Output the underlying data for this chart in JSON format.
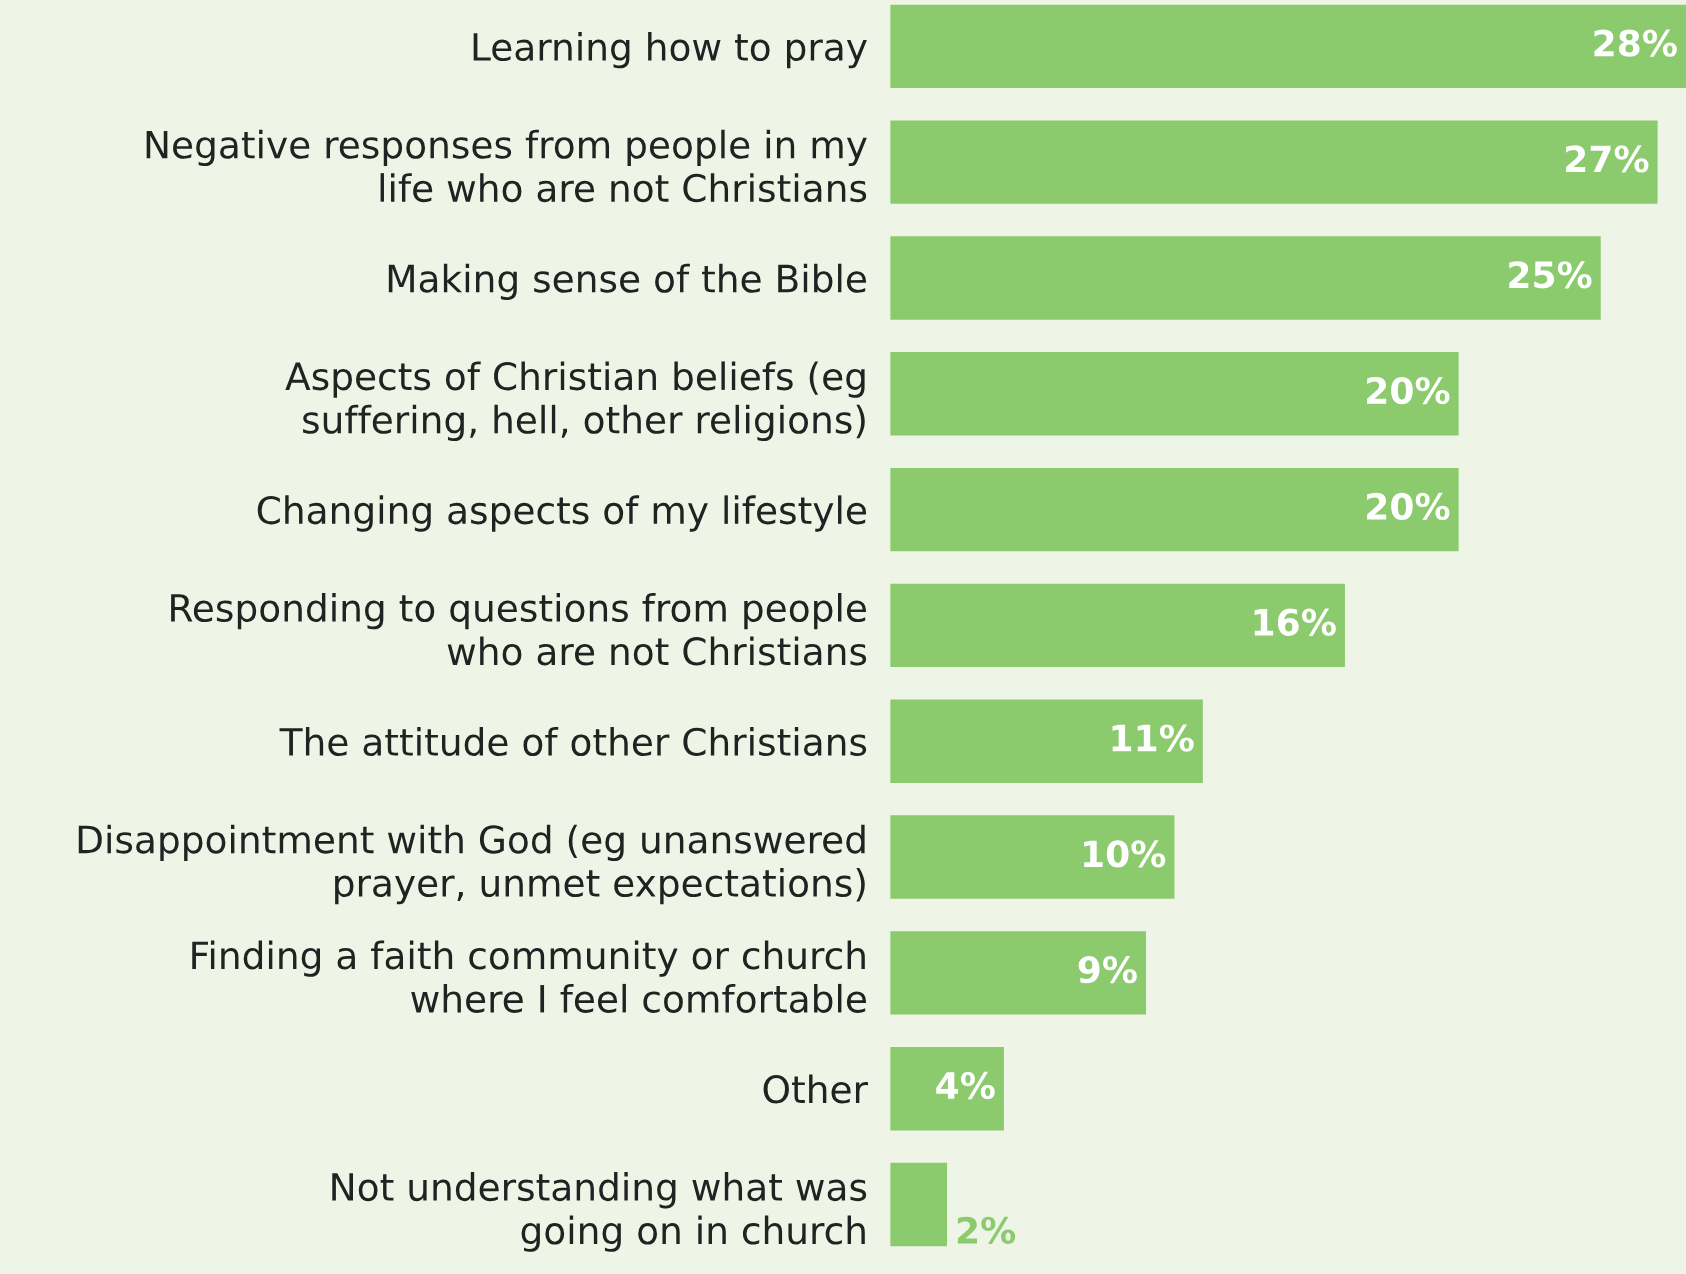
{
  "chart_data": {
    "type": "bar",
    "orientation": "horizontal",
    "categories": [
      "Learning how to pray",
      "Negative responses from people in my\nlife who are not Christians",
      "Making sense of the Bible",
      "Aspects of Christian beliefs (eg\nsuffering, hell, other religions)",
      "Changing aspects of my lifestyle",
      "Responding to questions from people\nwho are not Christians",
      "The attitude of other Christians",
      "Disappointment with God (eg unanswered\nprayer, unmet expectations)",
      "Finding a faith community or church\nwhere I feel comfortable",
      "Other",
      "Not understanding what was\ngoing on in church"
    ],
    "values": [
      28,
      27,
      25,
      20,
      20,
      16,
      11,
      10,
      9,
      4,
      2
    ],
    "value_labels": [
      "28%",
      "27%",
      "25%",
      "20%",
      "20%",
      "16%",
      "11%",
      "10%",
      "9%",
      "4%",
      "2%"
    ],
    "color": "#8cca6e",
    "grid": false,
    "legend": false
  }
}
